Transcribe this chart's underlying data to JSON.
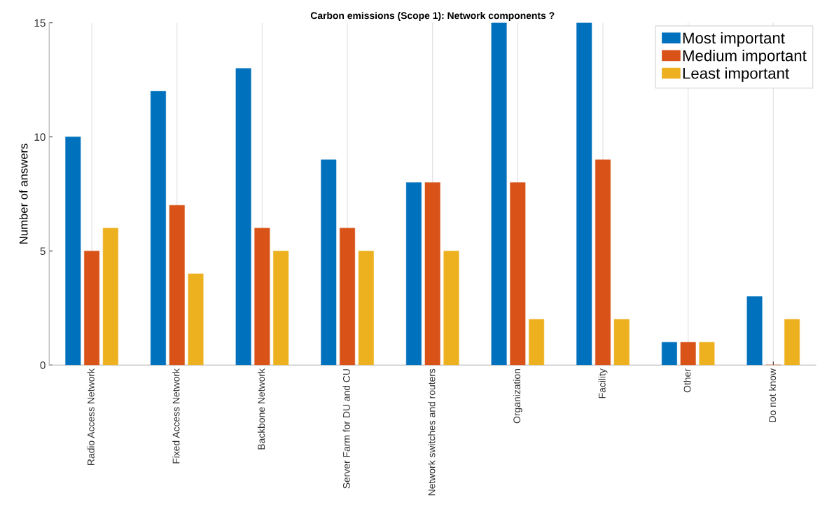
{
  "chart_data": {
    "type": "bar",
    "title": "Carbon emissions (Scope 1): Network components ?",
    "ylabel": "Number of answers",
    "categories": [
      "Radio Access Network",
      "Fixed Access Network",
      "Backbone Network",
      "Server Farm for DU and CU",
      "Network switches and routers",
      "Organization",
      "Facility",
      "Other",
      "Do not know"
    ],
    "series": [
      {
        "name": "Most important",
        "color": "#0072bd",
        "values": [
          10,
          12,
          13,
          9,
          8,
          15,
          15,
          1,
          3
        ]
      },
      {
        "name": "Medium important",
        "color": "#d95319",
        "values": [
          5,
          7,
          6,
          6,
          8,
          8,
          9,
          1,
          0
        ]
      },
      {
        "name": "Least important",
        "color": "#edb120",
        "values": [
          6,
          4,
          5,
          5,
          5,
          2,
          2,
          1,
          2
        ]
      }
    ],
    "ylim": [
      0,
      15
    ],
    "yticks": [
      0,
      5,
      10,
      15
    ],
    "grid": "x",
    "legend": "top right"
  }
}
